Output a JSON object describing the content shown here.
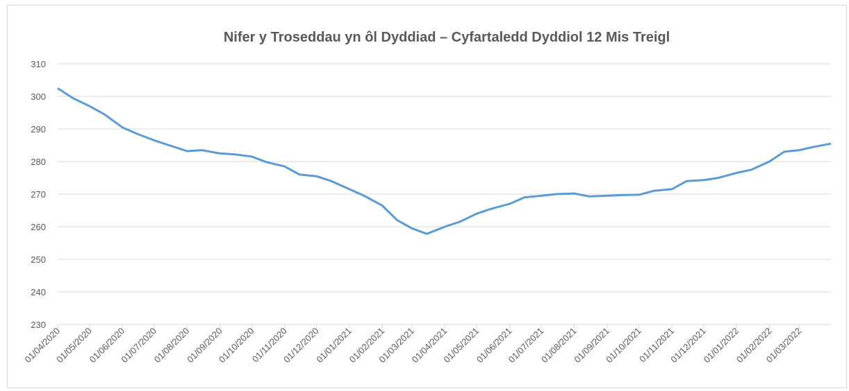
{
  "chart_data": {
    "type": "line",
    "title": "Nifer y Troseddau yn ôl Dyddiad – Cyfartaledd Dyddiol 12 Mis Treigl",
    "color": "#5b9bd5",
    "x": [
      "01/04/2020",
      "15/04/2020",
      "01/05/2020",
      "15/05/2020",
      "01/06/2020",
      "15/06/2020",
      "01/07/2020",
      "15/07/2020",
      "01/08/2020",
      "15/08/2020",
      "01/09/2020",
      "15/09/2020",
      "01/10/2020",
      "15/10/2020",
      "01/11/2020",
      "15/11/2020",
      "01/12/2020",
      "15/12/2020",
      "01/01/2021",
      "15/01/2021",
      "01/02/2021",
      "15/02/2021",
      "01/03/2021",
      "15/03/2021",
      "01/04/2021",
      "15/04/2021",
      "01/05/2021",
      "15/05/2021",
      "01/06/2021",
      "15/06/2021",
      "01/07/2021",
      "15/07/2021",
      "01/08/2021",
      "15/08/2021",
      "01/09/2021",
      "15/09/2021",
      "01/10/2021",
      "15/10/2021",
      "01/11/2021",
      "15/11/2021",
      "01/12/2021",
      "15/12/2021",
      "01/01/2022",
      "15/01/2022",
      "01/02/2022",
      "15/02/2022",
      "01/03/2022",
      "15/03/2022",
      "31/03/2022"
    ],
    "values": [
      302.5,
      299.5,
      297,
      294.5,
      290.5,
      288.5,
      286.5,
      285,
      283.2,
      283.5,
      282.5,
      282.2,
      281.5,
      279.8,
      278.5,
      276,
      275.5,
      274,
      271.5,
      269.5,
      266.5,
      262,
      259.5,
      257.8,
      260,
      261.5,
      264,
      265.5,
      267,
      269,
      269.5,
      270,
      270.2,
      269.3,
      269.5,
      269.7,
      269.8,
      271,
      271.5,
      274,
      274.3,
      275,
      276.5,
      277.5,
      280,
      283,
      283.5,
      284.5,
      285.5
    ],
    "xlim": [
      "01/04/2020",
      "31/03/2022"
    ],
    "xticks": [
      "01/04/2020",
      "01/05/2020",
      "01/06/2020",
      "01/07/2020",
      "01/08/2020",
      "01/09/2020",
      "01/10/2020",
      "01/11/2020",
      "01/12/2020",
      "01/01/2021",
      "01/02/2021",
      "01/03/2021",
      "01/04/2021",
      "01/05/2021",
      "01/06/2021",
      "01/07/2021",
      "01/08/2021",
      "01/09/2021",
      "01/10/2021",
      "01/11/2021",
      "01/12/2021",
      "01/01/2022",
      "01/02/2022",
      "01/03/2022"
    ],
    "ylim": [
      230,
      310
    ],
    "yticks": [
      230,
      240,
      250,
      260,
      270,
      280,
      290,
      300,
      310
    ],
    "grid": true
  }
}
